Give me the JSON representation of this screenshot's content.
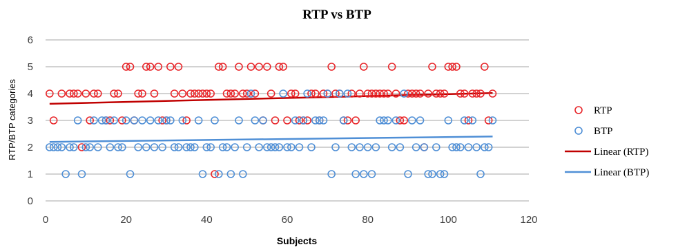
{
  "chart_data": {
    "type": "scatter",
    "title": "RTP vs BTP",
    "xlabel": "Subjects",
    "ylabel": "RTP/BTP categories",
    "xlim": [
      0,
      120
    ],
    "ylim": [
      0,
      6
    ],
    "x_ticks": [
      0,
      20,
      40,
      60,
      80,
      100,
      120
    ],
    "y_ticks": [
      0,
      1,
      2,
      3,
      4,
      5,
      6
    ],
    "grid": "horizontal",
    "legend_position": "right",
    "series": [
      {
        "name": "RTP",
        "color": "#e8262a",
        "marker": "open-circle",
        "points": [
          [
            1,
            4
          ],
          [
            2,
            3
          ],
          [
            4,
            4
          ],
          [
            6,
            4
          ],
          [
            7,
            4
          ],
          [
            8,
            4
          ],
          [
            9,
            2
          ],
          [
            10,
            4
          ],
          [
            11,
            3
          ],
          [
            12,
            4
          ],
          [
            13,
            4
          ],
          [
            15,
            3
          ],
          [
            16,
            3
          ],
          [
            17,
            4
          ],
          [
            18,
            4
          ],
          [
            19,
            3
          ],
          [
            20,
            5
          ],
          [
            21,
            5
          ],
          [
            22,
            3
          ],
          [
            23,
            4
          ],
          [
            24,
            4
          ],
          [
            25,
            5
          ],
          [
            26,
            5
          ],
          [
            27,
            4
          ],
          [
            28,
            5
          ],
          [
            29,
            3
          ],
          [
            30,
            3
          ],
          [
            31,
            5
          ],
          [
            32,
            4
          ],
          [
            33,
            5
          ],
          [
            34,
            4
          ],
          [
            35,
            3
          ],
          [
            36,
            4
          ],
          [
            37,
            4
          ],
          [
            38,
            4
          ],
          [
            39,
            4
          ],
          [
            40,
            4
          ],
          [
            41,
            4
          ],
          [
            42,
            1
          ],
          [
            43,
            5
          ],
          [
            44,
            5
          ],
          [
            45,
            4
          ],
          [
            46,
            4
          ],
          [
            47,
            4
          ],
          [
            48,
            5
          ],
          [
            49,
            4
          ],
          [
            50,
            4
          ],
          [
            51,
            5
          ],
          [
            52,
            4
          ],
          [
            53,
            5
          ],
          [
            54,
            3
          ],
          [
            55,
            5
          ],
          [
            56,
            4
          ],
          [
            57,
            3
          ],
          [
            58,
            5
          ],
          [
            59,
            5
          ],
          [
            60,
            3
          ],
          [
            61,
            4
          ],
          [
            62,
            4
          ],
          [
            63,
            3
          ],
          [
            64,
            3
          ],
          [
            65,
            3
          ],
          [
            66,
            4
          ],
          [
            67,
            4
          ],
          [
            68,
            3
          ],
          [
            69,
            4
          ],
          [
            70,
            4
          ],
          [
            71,
            5
          ],
          [
            72,
            4
          ],
          [
            73,
            4
          ],
          [
            74,
            3
          ],
          [
            75,
            3
          ],
          [
            76,
            4
          ],
          [
            77,
            3
          ],
          [
            78,
            4
          ],
          [
            79,
            5
          ],
          [
            80,
            4
          ],
          [
            81,
            4
          ],
          [
            82,
            4
          ],
          [
            83,
            4
          ],
          [
            84,
            4
          ],
          [
            85,
            4
          ],
          [
            86,
            5
          ],
          [
            87,
            4
          ],
          [
            88,
            3
          ],
          [
            89,
            3
          ],
          [
            90,
            4
          ],
          [
            91,
            4
          ],
          [
            92,
            4
          ],
          [
            93,
            4
          ],
          [
            94,
            2
          ],
          [
            95,
            4
          ],
          [
            96,
            5
          ],
          [
            97,
            4
          ],
          [
            98,
            4
          ],
          [
            99,
            4
          ],
          [
            100,
            5
          ],
          [
            101,
            5
          ],
          [
            102,
            5
          ],
          [
            103,
            4
          ],
          [
            104,
            4
          ],
          [
            105,
            3
          ],
          [
            106,
            4
          ],
          [
            107,
            4
          ],
          [
            108,
            4
          ],
          [
            109,
            5
          ],
          [
            110,
            3
          ],
          [
            111,
            4
          ]
        ],
        "trend": {
          "name": "Linear (RTP)",
          "color": "#c00000",
          "x": [
            1,
            111
          ],
          "y": [
            3.62,
            4.02
          ]
        }
      },
      {
        "name": "BTP",
        "color": "#4f8fd6",
        "marker": "open-circle",
        "points": [
          [
            1,
            2
          ],
          [
            2,
            2
          ],
          [
            3,
            2
          ],
          [
            4,
            2
          ],
          [
            5,
            1
          ],
          [
            6,
            2
          ],
          [
            7,
            2
          ],
          [
            8,
            3
          ],
          [
            9,
            1
          ],
          [
            10,
            2
          ],
          [
            11,
            2
          ],
          [
            12,
            3
          ],
          [
            13,
            2
          ],
          [
            14,
            3
          ],
          [
            15,
            3
          ],
          [
            16,
            2
          ],
          [
            17,
            3
          ],
          [
            18,
            2
          ],
          [
            19,
            2
          ],
          [
            20,
            3
          ],
          [
            21,
            1
          ],
          [
            22,
            3
          ],
          [
            23,
            2
          ],
          [
            24,
            3
          ],
          [
            25,
            2
          ],
          [
            26,
            3
          ],
          [
            27,
            2
          ],
          [
            28,
            3
          ],
          [
            29,
            2
          ],
          [
            30,
            3
          ],
          [
            31,
            3
          ],
          [
            32,
            2
          ],
          [
            33,
            2
          ],
          [
            34,
            3
          ],
          [
            35,
            2
          ],
          [
            36,
            2
          ],
          [
            37,
            2
          ],
          [
            38,
            3
          ],
          [
            39,
            1
          ],
          [
            40,
            2
          ],
          [
            41,
            2
          ],
          [
            42,
            3
          ],
          [
            43,
            1
          ],
          [
            44,
            2
          ],
          [
            45,
            2
          ],
          [
            46,
            1
          ],
          [
            47,
            2
          ],
          [
            48,
            3
          ],
          [
            49,
            1
          ],
          [
            50,
            2
          ],
          [
            51,
            4
          ],
          [
            52,
            3
          ],
          [
            53,
            2
          ],
          [
            54,
            3
          ],
          [
            55,
            2
          ],
          [
            56,
            2
          ],
          [
            57,
            2
          ],
          [
            58,
            2
          ],
          [
            59,
            4
          ],
          [
            60,
            2
          ],
          [
            61,
            2
          ],
          [
            62,
            3
          ],
          [
            63,
            2
          ],
          [
            64,
            3
          ],
          [
            65,
            4
          ],
          [
            66,
            2
          ],
          [
            67,
            3
          ],
          [
            68,
            3
          ],
          [
            69,
            3
          ],
          [
            70,
            4
          ],
          [
            71,
            1
          ],
          [
            72,
            2
          ],
          [
            73,
            4
          ],
          [
            74,
            3
          ],
          [
            75,
            4
          ],
          [
            76,
            2
          ],
          [
            77,
            1
          ],
          [
            78,
            2
          ],
          [
            79,
            1
          ],
          [
            80,
            2
          ],
          [
            81,
            1
          ],
          [
            82,
            2
          ],
          [
            83,
            3
          ],
          [
            84,
            3
          ],
          [
            85,
            3
          ],
          [
            86,
            2
          ],
          [
            87,
            3
          ],
          [
            88,
            2
          ],
          [
            89,
            4
          ],
          [
            90,
            1
          ],
          [
            91,
            3
          ],
          [
            92,
            2
          ],
          [
            93,
            3
          ],
          [
            94,
            2
          ],
          [
            95,
            1
          ],
          [
            96,
            1
          ],
          [
            97,
            2
          ],
          [
            98,
            1
          ],
          [
            99,
            1
          ],
          [
            100,
            3
          ],
          [
            101,
            2
          ],
          [
            102,
            2
          ],
          [
            103,
            2
          ],
          [
            104,
            3
          ],
          [
            105,
            2
          ],
          [
            106,
            3
          ],
          [
            107,
            2
          ],
          [
            108,
            1
          ],
          [
            109,
            2
          ],
          [
            110,
            2
          ],
          [
            111,
            3
          ]
        ],
        "trend": {
          "name": "Linear (BTP)",
          "color": "#4f8fd6",
          "x": [
            1,
            111
          ],
          "y": [
            2.2,
            2.4
          ]
        }
      }
    ]
  }
}
